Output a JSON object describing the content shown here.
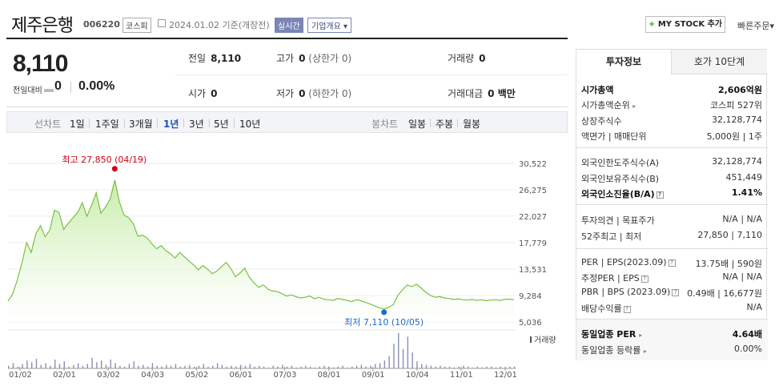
{
  "header": {
    "title": "제주은행",
    "code": "006220",
    "market": "코스피",
    "date": "2024.01.02",
    "date_suffix": "기준(개장전)",
    "realtime_label": "실시간",
    "overview_label": "기업개요",
    "mystock_label": "MY STOCK 추가",
    "quick_order_label": "빠른주문"
  },
  "price": {
    "current": "8,110",
    "prev_label": "전일대비",
    "change": "0",
    "rate": "0.00%"
  },
  "stats": {
    "prev_close_label": "전일",
    "prev_close": "8,110",
    "high_label": "고가",
    "high": "0",
    "high_sub": "(상한가 0)",
    "volume_label": "거래량",
    "volume": "0",
    "open_label": "시가",
    "open": "0",
    "low_label": "저가",
    "low": "0",
    "low_sub": "(하한가 0)",
    "value_label": "거래대금",
    "value": "0 백만"
  },
  "period_bar": {
    "line_label": "선차트",
    "periods": [
      "1일",
      "1주일",
      "3개월",
      "1년",
      "3년",
      "5년",
      "10년"
    ],
    "selected": "1년",
    "candle_label": "봉차트",
    "candles": [
      "일봉",
      "주봉",
      "월봉"
    ]
  },
  "chart_data": {
    "type": "area",
    "x_ticks": [
      "01/02",
      "02/01",
      "03/02",
      "04/03",
      "05/02",
      "06/01",
      "07/03",
      "08/01",
      "09/01",
      "10/04",
      "11/01",
      "12/01"
    ],
    "y_ticks": [
      "30,522",
      "26,275",
      "22,027",
      "17,779",
      "13,531",
      "9,284",
      "5,036"
    ],
    "ylim": [
      5036,
      30522
    ],
    "high_label": "최고 27,850 (04/19)",
    "high_value": 27850,
    "low_label": "최저 7,110 (10/05)",
    "low_value": 7110,
    "volume_legend": "거래량",
    "line_color": "#7ac142",
    "fill_color": "#c7ecaa",
    "high_color": "#d0021b",
    "low_color": "#1f6bd1",
    "series_values": [
      8400,
      9500,
      11800,
      14500,
      17800,
      16200,
      19200,
      20500,
      18700,
      19800,
      23000,
      22600,
      19900,
      20900,
      21800,
      22600,
      24200,
      22000,
      23800,
      25800,
      22500,
      23500,
      24800,
      27850,
      24300,
      22200,
      21800,
      20800,
      18800,
      19000,
      18500,
      17600,
      16800,
      17300,
      16500,
      16000,
      15300,
      16200,
      15500,
      14800,
      14200,
      13400,
      14100,
      13500,
      12800,
      13200,
      13900,
      14600,
      13600,
      12300,
      12900,
      13700,
      12200,
      11300,
      10600,
      11000,
      10300,
      10000,
      9900,
      9600,
      9200,
      9400,
      9100,
      8900,
      9000,
      9200,
      8800,
      9000,
      8700,
      8600,
      8500,
      8800,
      8650,
      8500,
      8300,
      8600,
      8450,
      8200,
      7900,
      7600,
      7300,
      7110,
      7400,
      7800,
      9300,
      10200,
      11000,
      10700,
      11100,
      10500,
      9800,
      9300,
      9000,
      9100,
      8900,
      8800,
      8650,
      8750,
      8600,
      8550,
      8650,
      8500,
      8600,
      8450,
      8550,
      8600,
      8500,
      8650,
      8700,
      8600
    ],
    "volume_values": [
      3,
      6,
      2,
      5,
      9,
      7,
      11,
      4,
      6,
      3,
      10,
      5,
      8,
      2,
      4,
      6,
      3,
      5,
      12,
      7,
      9,
      4,
      10,
      6,
      3,
      2,
      5,
      8,
      3,
      4,
      2,
      6,
      3,
      2,
      4,
      3,
      5,
      2,
      3,
      4,
      2,
      3,
      5,
      2,
      3,
      6,
      4,
      2,
      3,
      2,
      4,
      3,
      5,
      2,
      3,
      2,
      1,
      3,
      2,
      4,
      2,
      3,
      1,
      2,
      3,
      2,
      1,
      2,
      3,
      2,
      1,
      2,
      3,
      1,
      2,
      3,
      4,
      2,
      3,
      5,
      6,
      9,
      14,
      28,
      40,
      22,
      36,
      18,
      8,
      5,
      4,
      3,
      2,
      3,
      2,
      2,
      1,
      2,
      3,
      2,
      1,
      2,
      1,
      2,
      2,
      1,
      2,
      1,
      2,
      2
    ]
  },
  "info_panel": {
    "tab_info": "투자정보",
    "tab_quote": "호가 10단계",
    "market_cap_label": "시가총액",
    "market_cap": "2,606억원",
    "market_cap_rank_label": "시가총액순위",
    "market_cap_rank": "코스피 527위",
    "shares_label": "상장주식수",
    "shares": "32,128,774",
    "face_label": "액면가 | 매매단위",
    "face": "5,000원 | 1주",
    "foreign_limit_label": "외국인한도주식수(A)",
    "foreign_limit": "32,128,774",
    "foreign_hold_label": "외국인보유주식수(B)",
    "foreign_hold": "451,449",
    "foreign_ratio_label": "외국인소진율(B/A)",
    "foreign_ratio": "1.41%",
    "opinion_label": "투자의견 | 목표주가",
    "opinion": "N/A | N/A",
    "w52_label": "52주최고 | 최저",
    "w52": "27,850 | 7,110",
    "per_label": "PER | EPS(2023.09)",
    "per": "13.75배 | 590원",
    "est_per_label": "추정PER | EPS",
    "est_per": "N/A | N/A",
    "pbr_label": "PBR | BPS (2023.09)",
    "pbr": "0.49배 | 16,677원",
    "div_label": "배당수익률",
    "div": "N/A",
    "ind_per_label": "동일업종 PER",
    "ind_per": "4.64배",
    "ind_rate_label": "동일업종 등락률",
    "ind_rate": "0.00%"
  }
}
